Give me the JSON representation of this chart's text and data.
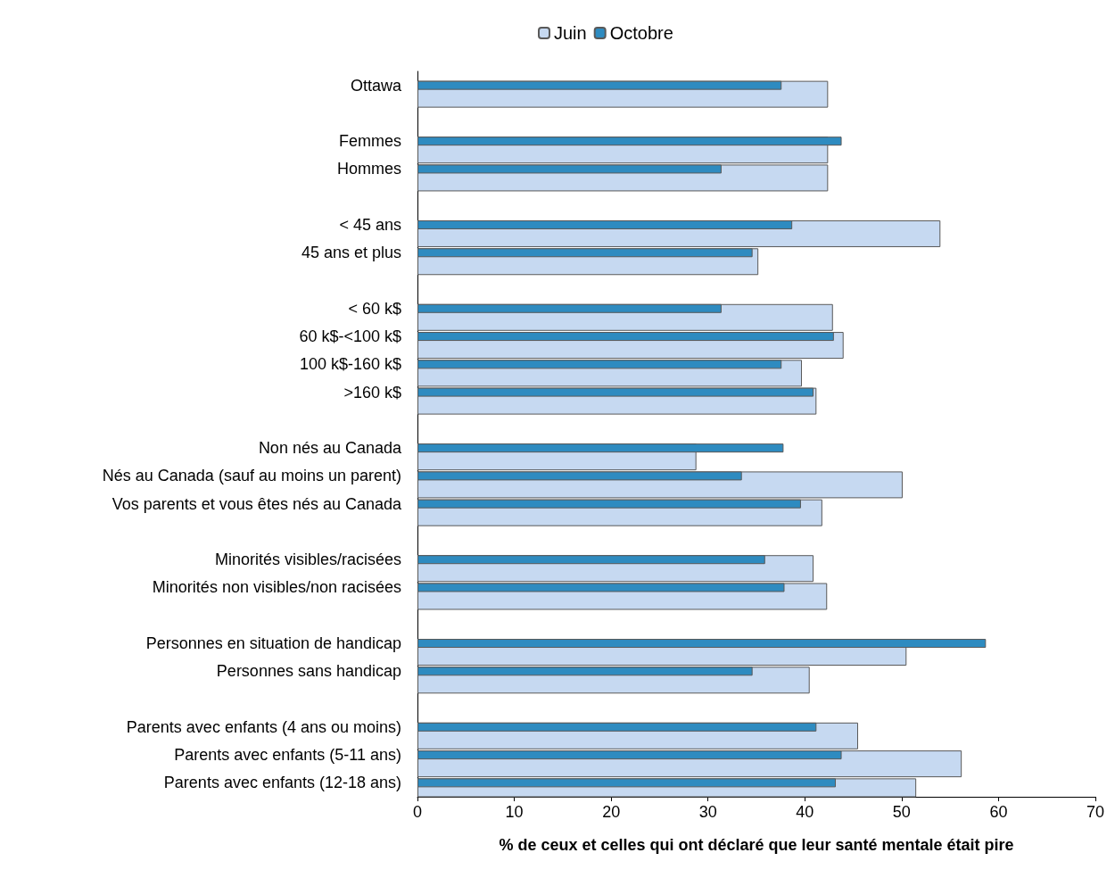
{
  "chart_data": {
    "type": "bar",
    "orientation": "horizontal",
    "xlabel": "% de ceux et celles qui ont déclaré que leur santé mentale était pire",
    "categories": [
      "Ottawa",
      null,
      "Femmes",
      "Hommes",
      null,
      "< 45 ans",
      "45 ans et plus",
      null,
      "< 60 k$",
      "60 k$-<100 k$",
      "100 k$-160 k$",
      ">160 k$",
      null,
      "Non nés au Canada",
      "Nés au Canada (sauf au moins un parent)",
      "Vos parents et vous êtes nés au Canada",
      null,
      "Minorités visibles/racisées",
      "Minorités non visibles/non racisées",
      null,
      "Personnes en situation de handicap",
      "Personnes sans handicap",
      null,
      "Parents avec enfants (4 ans ou moins)",
      "Parents avec enfants (5-11 ans)",
      "Parents avec enfants (12-18 ans)"
    ],
    "series": [
      {
        "name": "Juin",
        "color": "#c6d9f1",
        "values": [
          42.4,
          null,
          42.4,
          42.4,
          null,
          54.0,
          35.2,
          null,
          42.9,
          44.0,
          39.7,
          41.2,
          null,
          28.8,
          50.1,
          41.8,
          null,
          40.9,
          42.3,
          null,
          50.5,
          40.5,
          null,
          45.5,
          56.2,
          51.5
        ]
      },
      {
        "name": "Octobre",
        "color": "#2e8bc0",
        "values": [
          37.6,
          null,
          43.8,
          31.4,
          null,
          38.7,
          34.6,
          null,
          31.4,
          43.0,
          37.6,
          40.9,
          null,
          37.8,
          33.5,
          39.6,
          null,
          35.9,
          37.9,
          null,
          58.7,
          34.6,
          null,
          41.2,
          43.8,
          43.2
        ]
      }
    ],
    "xlim": [
      0,
      70
    ],
    "xticks": [
      0,
      10,
      20,
      30,
      40,
      50,
      60,
      70
    ],
    "grid": false,
    "legend": "top"
  }
}
